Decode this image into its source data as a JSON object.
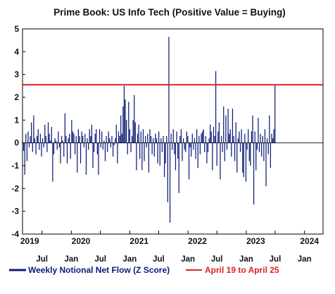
{
  "colors": {
    "bars": "#0b1a78",
    "reference_line": "#dd2222",
    "axis": "#000000",
    "legend_bars_text": "#0b1a78",
    "legend_line_text": "#dd2222"
  },
  "chart_data": {
    "type": "bar",
    "title": "Prime Book: US Info Tech (Positive Value = Buying)",
    "xlabel": "",
    "ylabel": "",
    "ylim": [
      -4,
      5
    ],
    "y_ticks": [
      "5",
      "4",
      "3",
      "2",
      "1",
      "0",
      "-1",
      "-2",
      "-3",
      "-4"
    ],
    "x_range": [
      "2019-03-01",
      "2024-04-26"
    ],
    "month_ticks": [
      {
        "date": "2019-07-01",
        "label": "Jul"
      },
      {
        "date": "2020-01-01",
        "label": "Jan"
      },
      {
        "date": "2020-07-01",
        "label": "Jul"
      },
      {
        "date": "2021-01-01",
        "label": "Jan"
      },
      {
        "date": "2021-07-01",
        "label": "Jul"
      },
      {
        "date": "2022-01-01",
        "label": "Jan"
      },
      {
        "date": "2022-07-01",
        "label": "Jul"
      },
      {
        "date": "2023-01-01",
        "label": "Jan"
      },
      {
        "date": "2023-07-01",
        "label": "Jul"
      },
      {
        "date": "2024-01-01",
        "label": "Jan"
      }
    ],
    "year_labels": [
      {
        "date": "2019-04-15",
        "label": "2019"
      },
      {
        "date": "2020-03-01",
        "label": "2020"
      },
      {
        "date": "2021-03-01",
        "label": "2021"
      },
      {
        "date": "2022-03-01",
        "label": "2022"
      },
      {
        "date": "2023-03-01",
        "label": "2023"
      },
      {
        "date": "2024-02-01",
        "label": "2024"
      }
    ],
    "grid": false,
    "legend_position": "bottom",
    "reference_line": {
      "y": 2.55,
      "name": "April 19 to April 25"
    },
    "series": [
      {
        "name": "Weekly Notional Net Flow (Z Score)",
        "start_date": "2019-03-01",
        "frequency": "weekly",
        "values": [
          0.1,
          -0.35,
          -1.4,
          0.4,
          -0.8,
          0.5,
          -0.2,
          0.3,
          0.9,
          -0.4,
          1.2,
          0.2,
          -0.5,
          0.3,
          0.6,
          -0.3,
          0.4,
          -0.6,
          0.2,
          -0.2,
          0.8,
          0.3,
          -0.4,
          0.9,
          0.4,
          0.1,
          0.7,
          -1.7,
          -0.5,
          0.2,
          0.1,
          -0.3,
          0.5,
          -0.2,
          -0.9,
          0.3,
          0.1,
          -0.6,
          1.3,
          0.3,
          -0.9,
          0.2,
          0.4,
          -0.7,
          1.0,
          0.5,
          0.4,
          -0.5,
          0.3,
          -1.3,
          0.6,
          0.3,
          -0.9,
          0.5,
          0.3,
          -0.2,
          0.4,
          -1.4,
          0.2,
          -0.3,
          0.6,
          0.3,
          0.8,
          -1.1,
          -0.4,
          0.4,
          0.6,
          -0.5,
          -1.4,
          0.6,
          -0.2,
          0.5,
          -0.3,
          0.1,
          -0.8,
          0.3,
          -0.4,
          0.5,
          0.2,
          -0.2,
          0.3,
          -0.6,
          -0.1,
          0.2,
          0.8,
          -0.9,
          0.5,
          0.3,
          1.2,
          0.4,
          1.6,
          2.5,
          1.9,
          1.0,
          -0.5,
          1.8,
          0.6,
          -0.4,
          0.3,
          1.0,
          2.1,
          0.9,
          -1.2,
          0.4,
          0.8,
          -0.7,
          0.5,
          -1.2,
          0.6,
          -0.8,
          0.3,
          -0.2,
          0.4,
          -1.3,
          0.6,
          0.3,
          -0.5,
          0.2,
          -0.6,
          0.4,
          0.2,
          -0.9,
          0.5,
          -1.0,
          0.2,
          -0.4,
          0.3,
          -1.5,
          -0.9,
          0.3,
          -2.6,
          4.65,
          -3.5,
          0.4,
          -0.3,
          0.6,
          -0.5,
          -1.2,
          0.5,
          -0.7,
          -2.2,
          0.3,
          0.6,
          -0.8,
          0.2,
          -0.3,
          -0.4,
          0.5,
          0.3,
          -1.6,
          -0.2,
          -0.6,
          0.4,
          -0.3,
          0.2,
          -0.7,
          0.6,
          -1.1,
          0.3,
          -0.5,
          0.4,
          0.5,
          0.6,
          -0.4,
          0.3,
          -0.9,
          -0.4,
          0.2,
          0.8,
          0.5,
          -1.2,
          0.7,
          0.3,
          3.15,
          -1.0,
          0.5,
          0.9,
          -1.6,
          0.3,
          -0.4,
          1.6,
          -0.8,
          1.2,
          -0.3,
          1.5,
          0.4,
          0.6,
          -0.6,
          1.5,
          0.3,
          -0.8,
          0.9,
          -1.3,
          0.2,
          0.5,
          -0.4,
          0.6,
          -1.3,
          -1.5,
          0.4,
          -1.7,
          -0.3,
          0.6,
          -0.8,
          -1.0,
          0.5,
          1.2,
          -2.7,
          0.5,
          -1.2,
          -0.3,
          1.1,
          -0.4,
          0.4,
          -0.6,
          0.3,
          -0.8,
          0.6,
          -1.9,
          0.2,
          -0.5,
          1.2,
          -1.1,
          0.4,
          0.2,
          0.6,
          2.55
        ]
      }
    ]
  }
}
